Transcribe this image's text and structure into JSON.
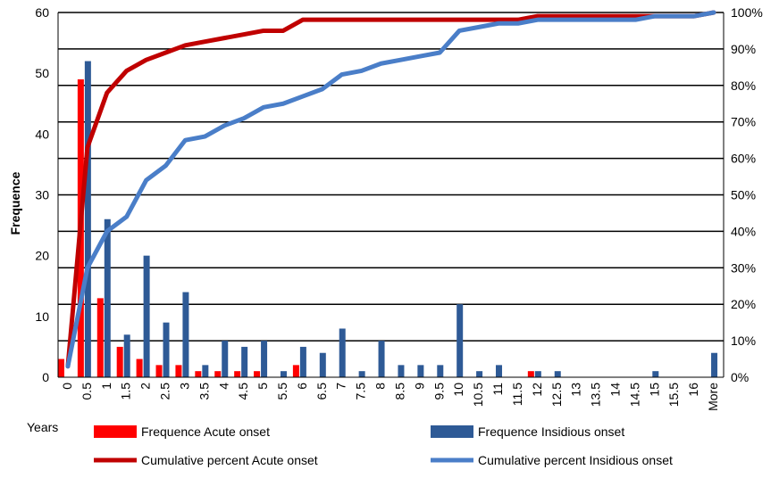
{
  "chart_data": {
    "type": "bar",
    "title": "",
    "xlabel": "Years",
    "ylabel": "Frequence",
    "ylim": [
      0,
      60
    ],
    "y_ticks": [
      0,
      10,
      20,
      30,
      40,
      50,
      60
    ],
    "y2lim": [
      0,
      100
    ],
    "y2_ticks": [
      "0%",
      "10%",
      "20%",
      "30%",
      "40%",
      "50%",
      "60%",
      "70%",
      "80%",
      "90%",
      "100%"
    ],
    "grid": "horizontal",
    "legend_position": "bottom",
    "categories": [
      "0",
      "0.5",
      "1",
      "1.5",
      "2",
      "2.5",
      "3",
      "3.5",
      "4",
      "4.5",
      "5",
      "5.5",
      "6",
      "6.5",
      "7",
      "7.5",
      "8",
      "8.5",
      "9",
      "9.5",
      "10",
      "10.5",
      "11",
      "11.5",
      "12",
      "12.5",
      "13",
      "13.5",
      "14",
      "14.5",
      "15",
      "15.5",
      "16",
      "More"
    ],
    "series": [
      {
        "name": "Frequence Acute onset",
        "type": "bar",
        "axis": "left",
        "color": "#ff0000",
        "values": [
          3,
          49,
          13,
          5,
          3,
          2,
          2,
          1,
          1,
          1,
          1,
          0,
          2,
          0,
          0,
          0,
          0,
          0,
          0,
          0,
          0,
          0,
          0,
          0,
          1,
          0,
          0,
          0,
          0,
          0,
          0,
          0,
          0,
          0
        ]
      },
      {
        "name": "Frequence Insidious onset",
        "type": "bar",
        "axis": "left",
        "color": "#2e5a96",
        "values": [
          0,
          52,
          26,
          7,
          20,
          9,
          14,
          2,
          6,
          5,
          6,
          1,
          5,
          4,
          8,
          1,
          6,
          2,
          2,
          2,
          12,
          1,
          2,
          0,
          1,
          1,
          0,
          0,
          0,
          0,
          1,
          0,
          0,
          4
        ]
      },
      {
        "name": "Cumulative percent Acute onset",
        "type": "line",
        "axis": "right",
        "color": "#c00000",
        "values": [
          3,
          63,
          78,
          84,
          87,
          89,
          91,
          92,
          93,
          94,
          95,
          95,
          98,
          98,
          98,
          98,
          98,
          98,
          98,
          98,
          98,
          98,
          98,
          98,
          99,
          99,
          99,
          99,
          99,
          99,
          99,
          99,
          99,
          100
        ]
      },
      {
        "name": "Cumulative percent Insidious onset",
        "type": "line",
        "axis": "right",
        "color": "#4a7ec8",
        "values": [
          3,
          30,
          40,
          44,
          54,
          58,
          65,
          66,
          69,
          71,
          74,
          75,
          77,
          79,
          83,
          84,
          86,
          87,
          88,
          89,
          95,
          96,
          97,
          97,
          98,
          98,
          98,
          98,
          98,
          98,
          99,
          99,
          99,
          100
        ]
      }
    ]
  }
}
